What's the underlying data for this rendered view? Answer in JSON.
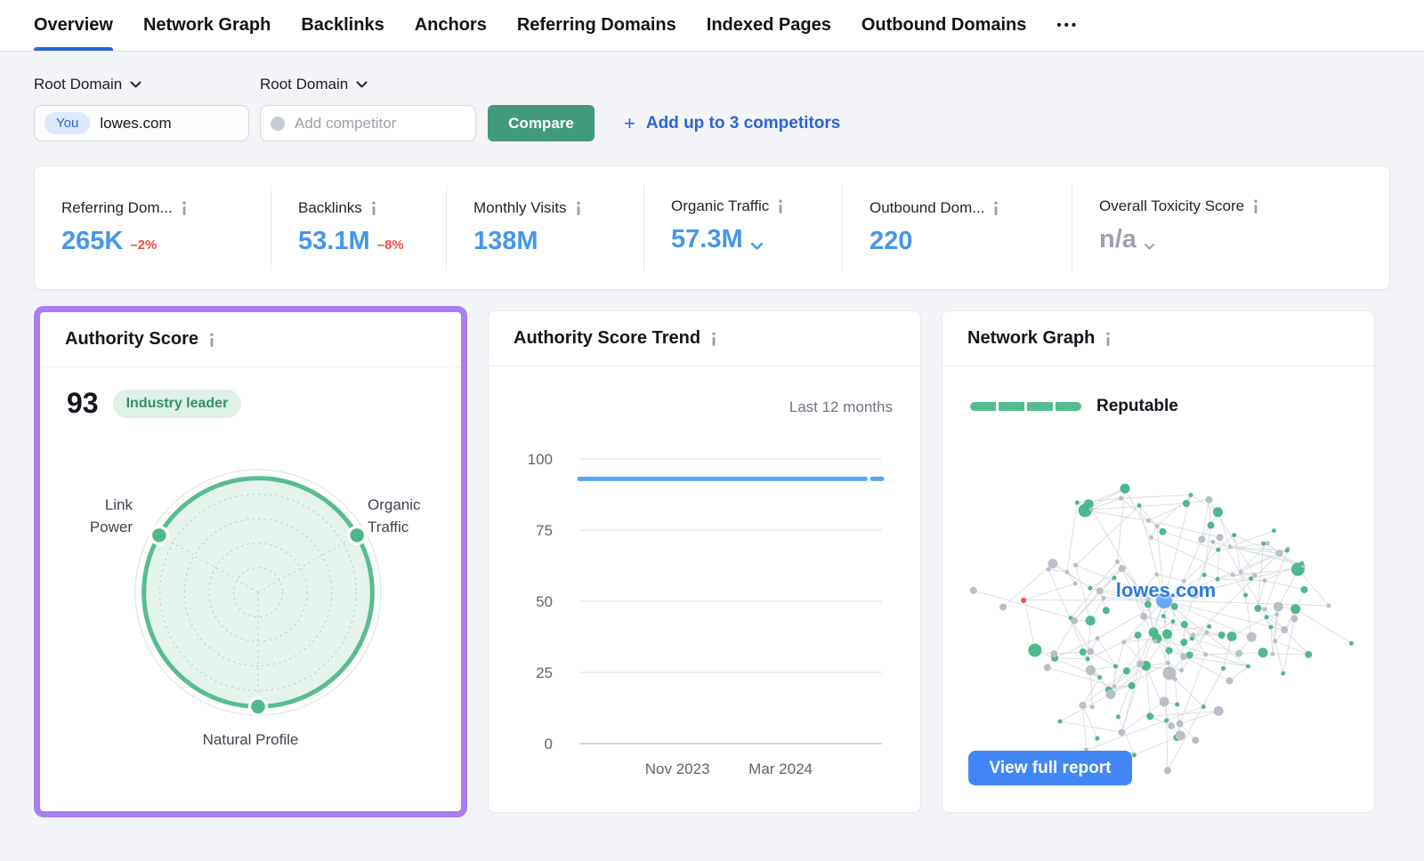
{
  "tabs": {
    "items": [
      {
        "label": "Overview",
        "active": true
      },
      {
        "label": "Network Graph",
        "active": false
      },
      {
        "label": "Backlinks",
        "active": false
      },
      {
        "label": "Anchors",
        "active": false
      },
      {
        "label": "Referring Domains",
        "active": false
      },
      {
        "label": "Indexed Pages",
        "active": false
      },
      {
        "label": "Outbound Domains",
        "active": false
      }
    ],
    "more_label": "•••"
  },
  "filters": {
    "you_selector_label": "Root Domain",
    "competitor_selector_label": "Root Domain",
    "you_badge": "You",
    "you_domain": "lowes.com",
    "competitor_placeholder": "Add competitor",
    "compare_button": "Compare",
    "add_plus": "+",
    "add_competitors": "Add up to 3 competitors"
  },
  "metrics": {
    "items": [
      {
        "label": "Referring Dom...",
        "value": "265K",
        "delta": "–2%"
      },
      {
        "label": "Backlinks",
        "value": "53.1M",
        "delta": "–8%"
      },
      {
        "label": "Monthly Visits",
        "value": "138M",
        "delta": ""
      },
      {
        "label": "Organic Traffic",
        "value": "57.3M",
        "delta": ""
      },
      {
        "label": "Outbound Dom...",
        "value": "220",
        "delta": ""
      },
      {
        "label": "Overall Toxicity Score",
        "value": "n/a",
        "delta": ""
      }
    ]
  },
  "authority_card": {
    "title": "Authority Score",
    "score": "93",
    "badge": "Industry leader",
    "chart_data": {
      "type": "radar",
      "axes": [
        "Link Power",
        "Organic Traffic",
        "Natural Profile"
      ],
      "axis_labels_split": [
        [
          "Link",
          "Power"
        ],
        [
          "Organic",
          "Traffic"
        ],
        [
          "Natural Profile"
        ]
      ],
      "values": [
        93,
        93,
        93
      ],
      "max": 100,
      "rings": 4
    }
  },
  "trend_card": {
    "title": "Authority Score Trend",
    "period": "Last 12 months",
    "chart_data": {
      "type": "line",
      "yticks": [
        100,
        75,
        50,
        25,
        0
      ],
      "ylim": [
        0,
        100
      ],
      "xticks": [
        "Nov 2023",
        "Mar 2024"
      ],
      "xtick_pos": [
        0.324,
        0.665
      ],
      "value": 93,
      "solid_end": 0.945,
      "dash_start": 0.968,
      "note": "flat line at 93 across last 12 months, short detached dash at right end"
    }
  },
  "network_card": {
    "title": "Network Graph",
    "rating": "Reputable",
    "rating_segments": 4,
    "center_label": "lowes.com",
    "button": "View full report",
    "graph": {
      "node_count": 150,
      "green_ratio": 0.45,
      "seed": 12
    }
  },
  "colors": {
    "accent_blue": "#2a64d9",
    "value_blue": "#4596ee",
    "delta_red": "#ed4e45",
    "compare_green": "#429a7c",
    "badge_bg": "#def1e7",
    "badge_text": "#2f9367",
    "radar_green": "#57bd90",
    "radar_fill": "rgba(87,189,144,0.16)",
    "highlight_purple": "#a87ef0",
    "trend_line_blue": "#58a5f1",
    "grid_gray": "#e9ebef",
    "axis_gray": "#c9ccd3",
    "tick_text": "#5d6470",
    "node_green": "#4db98c",
    "node_gray": "#b9bfc8",
    "node_blue": "#63a9f2",
    "node_red": "#e8524a",
    "edge_gray": "#d9dce2",
    "report_btn_blue": "#4286f5",
    "seg_green": "#52bd8f"
  }
}
